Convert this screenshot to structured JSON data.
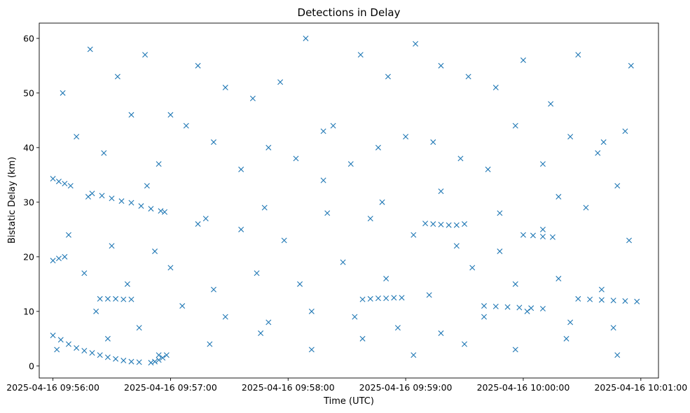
{
  "chart_data": {
    "type": "scatter",
    "title": "Detections in Delay",
    "xlabel": "Time (UTC)",
    "ylabel": "Bistatic Delay (km)",
    "marker": "x",
    "color": "#1f77b4",
    "grid": false,
    "legend": null,
    "xlim": [
      "2025-04-16 09:55:53",
      "2025-04-16 10:01:09"
    ],
    "ylim": [
      -2.2,
      62.8
    ],
    "x_ticks": [
      "2025-04-16 09:56:00",
      "2025-04-16 09:57:00",
      "2025-04-16 09:58:00",
      "2025-04-16 09:59:00",
      "2025-04-16 10:00:00",
      "2025-04-16 10:01:00"
    ],
    "y_ticks": [
      0,
      10,
      20,
      30,
      40,
      50,
      60
    ],
    "x_values_format": "HH:MM:SS (UTC, 2025-04-16)",
    "tracks": [
      {
        "x": [
          "09:56:00",
          "09:56:04",
          "09:56:08",
          "09:56:12",
          "09:56:16",
          "09:56:20",
          "09:56:24",
          "09:56:28",
          "09:56:32",
          "09:56:36",
          "09:56:40",
          "09:56:44"
        ],
        "y": [
          5.6,
          4.8,
          4.0,
          3.3,
          2.8,
          2.4,
          2.0,
          1.6,
          1.3,
          1.0,
          0.8,
          0.7
        ]
      },
      {
        "x": [
          "09:56:50",
          "09:56:52",
          "09:56:54",
          "09:56:56",
          "09:56:58"
        ],
        "y": [
          0.6,
          0.8,
          1.1,
          1.5,
          2.0
        ]
      },
      {
        "x": [
          "09:56:20",
          "09:56:25",
          "09:56:30",
          "09:56:35",
          "09:56:40",
          "09:56:45",
          "09:56:50",
          "09:56:55",
          "09:56:57"
        ],
        "y": [
          31.6,
          31.2,
          30.7,
          30.2,
          29.9,
          29.3,
          28.8,
          28.4,
          28.2
        ]
      },
      {
        "x": [
          "09:56:00",
          "09:56:03",
          "09:56:06",
          "09:56:09"
        ],
        "y": [
          34.3,
          33.8,
          33.4,
          33.0
        ]
      },
      {
        "x": [
          "09:56:00",
          "09:56:03",
          "09:56:06"
        ],
        "y": [
          19.3,
          19.7,
          20.0
        ]
      },
      {
        "x": [
          "09:56:24",
          "09:56:28",
          "09:56:32",
          "09:56:36",
          "09:56:40"
        ],
        "y": [
          12.3,
          12.3,
          12.3,
          12.2,
          12.2
        ]
      },
      {
        "x": [
          "09:58:38",
          "09:58:42",
          "09:58:46",
          "09:58:50",
          "09:58:54",
          "09:58:58"
        ],
        "y": [
          12.2,
          12.3,
          12.4,
          12.4,
          12.5,
          12.5
        ]
      },
      {
        "x": [
          "09:59:10",
          "09:59:14",
          "09:59:18",
          "09:59:22",
          "09:59:26",
          "09:59:30"
        ],
        "y": [
          26.1,
          26.0,
          25.9,
          25.8,
          25.8,
          26.0
        ]
      },
      {
        "x": [
          "10:00:28",
          "10:00:34",
          "10:00:40",
          "10:00:46",
          "10:00:52",
          "10:00:58"
        ],
        "y": [
          12.3,
          12.2,
          12.1,
          12.0,
          11.9,
          11.8
        ]
      },
      {
        "x": [
          "09:59:40",
          "09:59:46",
          "09:59:52",
          "09:59:58",
          "10:00:04",
          "10:00:10"
        ],
        "y": [
          11.0,
          10.9,
          10.8,
          10.7,
          10.6,
          10.5
        ]
      },
      {
        "x": [
          "10:00:00",
          "10:00:05",
          "10:00:10",
          "10:00:15"
        ],
        "y": [
          24.0,
          23.9,
          23.7,
          23.6
        ]
      }
    ],
    "scatter": {
      "x": [
        "09:56:05",
        "09:56:19",
        "09:56:33",
        "09:56:47",
        "09:57:00",
        "09:57:14",
        "09:57:28",
        "09:57:42",
        "09:57:56",
        "09:58:09",
        "09:58:23",
        "09:58:37",
        "09:58:51",
        "09:59:05",
        "09:59:18",
        "09:59:32",
        "09:59:46",
        "10:00:00",
        "10:00:14",
        "10:00:28",
        "10:00:41",
        "10:00:55",
        "09:56:12",
        "09:56:26",
        "09:56:40",
        "09:56:54",
        "09:57:08",
        "09:57:22",
        "09:57:36",
        "09:57:50",
        "09:58:04",
        "09:58:18",
        "09:58:32",
        "09:58:46",
        "09:59:00",
        "09:59:14",
        "09:59:28",
        "09:59:42",
        "09:59:56",
        "10:00:10",
        "10:00:24",
        "10:00:38",
        "10:00:52",
        "09:56:08",
        "09:56:30",
        "09:56:52",
        "09:57:14",
        "09:57:36",
        "09:57:58",
        "09:58:20",
        "09:58:42",
        "09:59:04",
        "09:59:26",
        "09:59:48",
        "10:00:10",
        "10:00:32",
        "10:00:54",
        "09:56:16",
        "09:56:38",
        "09:57:00",
        "09:57:22",
        "09:57:44",
        "09:58:06",
        "09:58:28",
        "09:58:50",
        "09:59:12",
        "09:59:34",
        "09:59:56",
        "10:00:18",
        "10:00:40",
        "09:56:22",
        "09:56:44",
        "09:57:06",
        "09:57:28",
        "09:57:50",
        "09:58:12",
        "09:58:34",
        "09:58:56",
        "09:59:18",
        "09:59:40",
        "10:00:02",
        "10:00:24",
        "10:00:46",
        "09:56:02",
        "09:56:28",
        "09:56:54",
        "09:57:20",
        "09:57:46",
        "09:58:12",
        "09:58:38",
        "09:59:04",
        "09:59:30",
        "09:59:56",
        "10:00:22",
        "10:00:48",
        "09:56:18",
        "09:56:48",
        "09:57:18",
        "09:57:48",
        "09:58:18",
        "09:58:48",
        "09:59:18",
        "09:59:48",
        "10:00:18",
        "10:00:48"
      ],
      "y": [
        50,
        58,
        53,
        57,
        46,
        55,
        51,
        49,
        52,
        60,
        44,
        57,
        53,
        59,
        55,
        53,
        51,
        56,
        48,
        57,
        41,
        55,
        42,
        39,
        46,
        37,
        44,
        41,
        36,
        40,
        38,
        43,
        37,
        40,
        42,
        41,
        38,
        36,
        44,
        37,
        42,
        39,
        43,
        24,
        22,
        21,
        26,
        25,
        23,
        28,
        27,
        24,
        22,
        21,
        25,
        29,
        23,
        17,
        15,
        18,
        14,
        17,
        15,
        19,
        16,
        13,
        18,
        15,
        16,
        14,
        10,
        7,
        11,
        9,
        8,
        10,
        9,
        7,
        6,
        9,
        10,
        8,
        7,
        3,
        5,
        2,
        4,
        6,
        3,
        5,
        2,
        4,
        3,
        5,
        2,
        31,
        33,
        27,
        29,
        34,
        30,
        32,
        28,
        31,
        33
      ]
    }
  }
}
